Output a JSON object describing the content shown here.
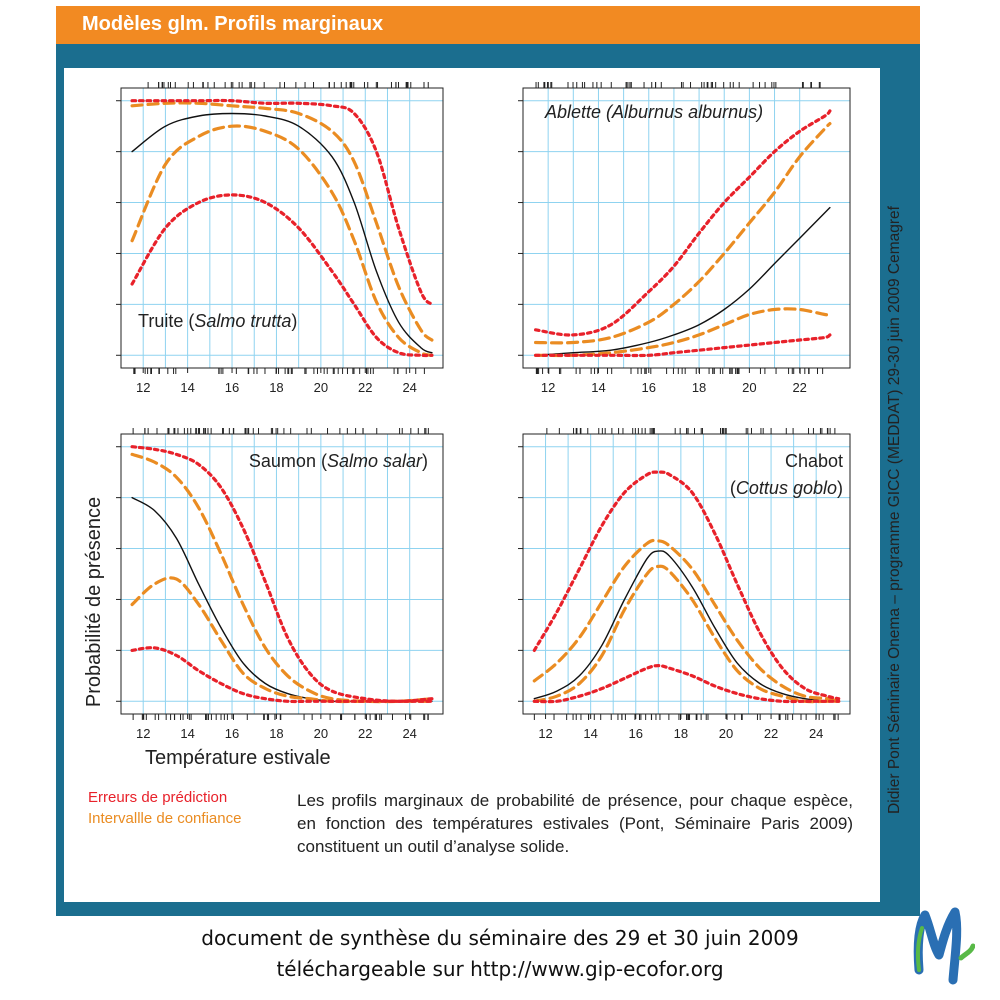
{
  "header": {
    "title": "Modèles glm. Profils marginaux"
  },
  "legend": {
    "prediction_errors": "Erreurs de prédiction",
    "confidence_interval": "Intervallle de confiance"
  },
  "caption": "Les profils marginaux de probabilité de présence, pour chaque espèce, en fonction des températures estivales (Pont, Séminaire Paris 2009) constituent un outil d’analyse solide.",
  "side_credit": "Didier Pont   Séminaire Onema – programme GICC (MEDDAT) 29-30 juin 2009   Cemagref",
  "footer": {
    "line1": "document de synthèse du séminaire des 29 et 30 juin 2009",
    "line2": "téléchargeable sur http://www.gip-ecofor.org"
  },
  "axes": {
    "ylabel": "Probabilité de présence",
    "xlabel": "Température estivale"
  },
  "colors": {
    "header": "#f28a22",
    "frame": "#1b6e8f",
    "fit": "#111111",
    "prediction_error": "#e8212a",
    "confidence_interval": "#ea8c22",
    "grid": "#8fd3f0"
  },
  "chart_data": [
    {
      "type": "line",
      "title_plain": "Truite (",
      "title_italic": "Salmo trutta",
      "title_end": ")",
      "xlim": [
        11,
        25.5
      ],
      "ylim": [
        -0.05,
        1.05
      ],
      "xticks": [
        12,
        14,
        16,
        18,
        20,
        22,
        24
      ],
      "x": [
        11.5,
        13,
        14.5,
        16,
        17.5,
        19,
        20.5,
        21.5,
        22.5,
        23.5,
        24.5,
        25
      ],
      "series": [
        {
          "role": "fit",
          "values": [
            0.8,
            0.9,
            0.94,
            0.95,
            0.94,
            0.9,
            0.78,
            0.6,
            0.33,
            0.13,
            0.03,
            0.01
          ]
        },
        {
          "role": "ci_upper",
          "values": [
            0.98,
            0.99,
            0.99,
            0.98,
            0.97,
            0.95,
            0.88,
            0.76,
            0.52,
            0.27,
            0.1,
            0.06
          ]
        },
        {
          "role": "ci_lower",
          "values": [
            0.45,
            0.75,
            0.86,
            0.9,
            0.88,
            0.81,
            0.64,
            0.45,
            0.21,
            0.07,
            0.01,
            0.0
          ]
        },
        {
          "role": "pe_upper",
          "values": [
            1.0,
            1.0,
            1.0,
            1.0,
            0.99,
            0.99,
            0.98,
            0.95,
            0.8,
            0.5,
            0.25,
            0.2
          ]
        },
        {
          "role": "pe_lower",
          "values": [
            0.28,
            0.5,
            0.6,
            0.63,
            0.6,
            0.5,
            0.33,
            0.2,
            0.07,
            0.01,
            0.0,
            0.0
          ]
        }
      ]
    },
    {
      "type": "line",
      "title_plain": "",
      "title_italic": "Ablette (Alburnus alburnus)",
      "title_end": "",
      "xlim": [
        11,
        24
      ],
      "ylim": [
        -0.05,
        1.05
      ],
      "xticks": [
        12,
        14,
        16,
        18,
        20,
        22
      ],
      "x": [
        11.5,
        13,
        14.5,
        16,
        17,
        18,
        19,
        20,
        21,
        22,
        23,
        23.2
      ],
      "series": [
        {
          "role": "fit",
          "values": [
            0.0,
            0.01,
            0.02,
            0.05,
            0.08,
            0.12,
            0.18,
            0.26,
            0.36,
            0.46,
            0.56,
            0.58
          ]
        },
        {
          "role": "ci_upper",
          "values": [
            0.05,
            0.05,
            0.07,
            0.13,
            0.2,
            0.29,
            0.4,
            0.52,
            0.64,
            0.78,
            0.89,
            0.91
          ]
        },
        {
          "role": "ci_lower",
          "values": [
            0.0,
            0.0,
            0.01,
            0.03,
            0.05,
            0.08,
            0.12,
            0.16,
            0.18,
            0.18,
            0.16,
            0.16
          ]
        },
        {
          "role": "pe_upper",
          "values": [
            0.1,
            0.08,
            0.12,
            0.25,
            0.35,
            0.48,
            0.6,
            0.7,
            0.8,
            0.88,
            0.94,
            0.96
          ]
        },
        {
          "role": "pe_lower",
          "values": [
            0.0,
            0.0,
            0.0,
            0.0,
            0.01,
            0.02,
            0.03,
            0.04,
            0.05,
            0.06,
            0.07,
            0.08
          ]
        }
      ]
    },
    {
      "type": "line",
      "title_plain": "Saumon (",
      "title_italic": "Salmo salar",
      "title_end": ")",
      "xlim": [
        11,
        25.5
      ],
      "ylim": [
        -0.05,
        1.05
      ],
      "xticks": [
        12,
        14,
        16,
        18,
        20,
        22,
        24
      ],
      "x": [
        11.5,
        12.5,
        13.5,
        14.5,
        15.5,
        16.5,
        17.5,
        18.5,
        19.5,
        20.5,
        22,
        23.5,
        25
      ],
      "series": [
        {
          "role": "fit",
          "values": [
            0.8,
            0.75,
            0.64,
            0.46,
            0.29,
            0.15,
            0.07,
            0.03,
            0.01,
            0.0,
            0.0,
            0.0,
            0.0
          ]
        },
        {
          "role": "ci_upper",
          "values": [
            0.97,
            0.94,
            0.88,
            0.76,
            0.58,
            0.38,
            0.21,
            0.1,
            0.04,
            0.01,
            0.0,
            0.0,
            0.01
          ]
        },
        {
          "role": "ci_lower",
          "values": [
            0.38,
            0.46,
            0.48,
            0.38,
            0.24,
            0.11,
            0.05,
            0.02,
            0.01,
            0.0,
            0.0,
            0.0,
            0.0
          ]
        },
        {
          "role": "pe_upper",
          "values": [
            1.0,
            0.99,
            0.97,
            0.93,
            0.84,
            0.68,
            0.47,
            0.25,
            0.11,
            0.04,
            0.01,
            0.0,
            0.01
          ]
        },
        {
          "role": "pe_lower",
          "values": [
            0.2,
            0.21,
            0.18,
            0.12,
            0.07,
            0.03,
            0.01,
            0.0,
            0.0,
            0.0,
            0.0,
            0.0,
            0.0
          ]
        }
      ]
    },
    {
      "type": "line",
      "title_plain": "Chabot",
      "title_italic": "Cottus goblo",
      "title_end": ")",
      "xlim": [
        11,
        25.5
      ],
      "ylim": [
        -0.05,
        1.05
      ],
      "xticks": [
        12,
        14,
        16,
        18,
        20,
        22,
        24
      ],
      "x": [
        11.5,
        12.5,
        13.5,
        14.5,
        15.5,
        16.5,
        17,
        17.5,
        18.5,
        19.5,
        20.5,
        21.5,
        22.5,
        23.5,
        24.5,
        25
      ],
      "series": [
        {
          "role": "fit",
          "values": [
            0.01,
            0.04,
            0.1,
            0.22,
            0.4,
            0.56,
            0.59,
            0.57,
            0.45,
            0.29,
            0.15,
            0.07,
            0.03,
            0.01,
            0.0,
            0.0
          ]
        },
        {
          "role": "ci_upper",
          "values": [
            0.08,
            0.15,
            0.25,
            0.39,
            0.53,
            0.62,
            0.63,
            0.61,
            0.52,
            0.38,
            0.24,
            0.13,
            0.06,
            0.02,
            0.01,
            0.0
          ]
        },
        {
          "role": "ci_lower",
          "values": [
            0.0,
            0.02,
            0.07,
            0.18,
            0.36,
            0.5,
            0.53,
            0.51,
            0.4,
            0.25,
            0.12,
            0.05,
            0.02,
            0.0,
            0.0,
            0.0
          ]
        },
        {
          "role": "pe_upper",
          "values": [
            0.2,
            0.35,
            0.52,
            0.69,
            0.82,
            0.89,
            0.9,
            0.89,
            0.82,
            0.66,
            0.46,
            0.27,
            0.13,
            0.05,
            0.02,
            0.01
          ]
        },
        {
          "role": "pe_lower",
          "values": [
            0.0,
            0.0,
            0.02,
            0.05,
            0.09,
            0.13,
            0.14,
            0.13,
            0.1,
            0.06,
            0.03,
            0.01,
            0.0,
            0.0,
            0.0,
            0.0
          ]
        }
      ]
    }
  ]
}
